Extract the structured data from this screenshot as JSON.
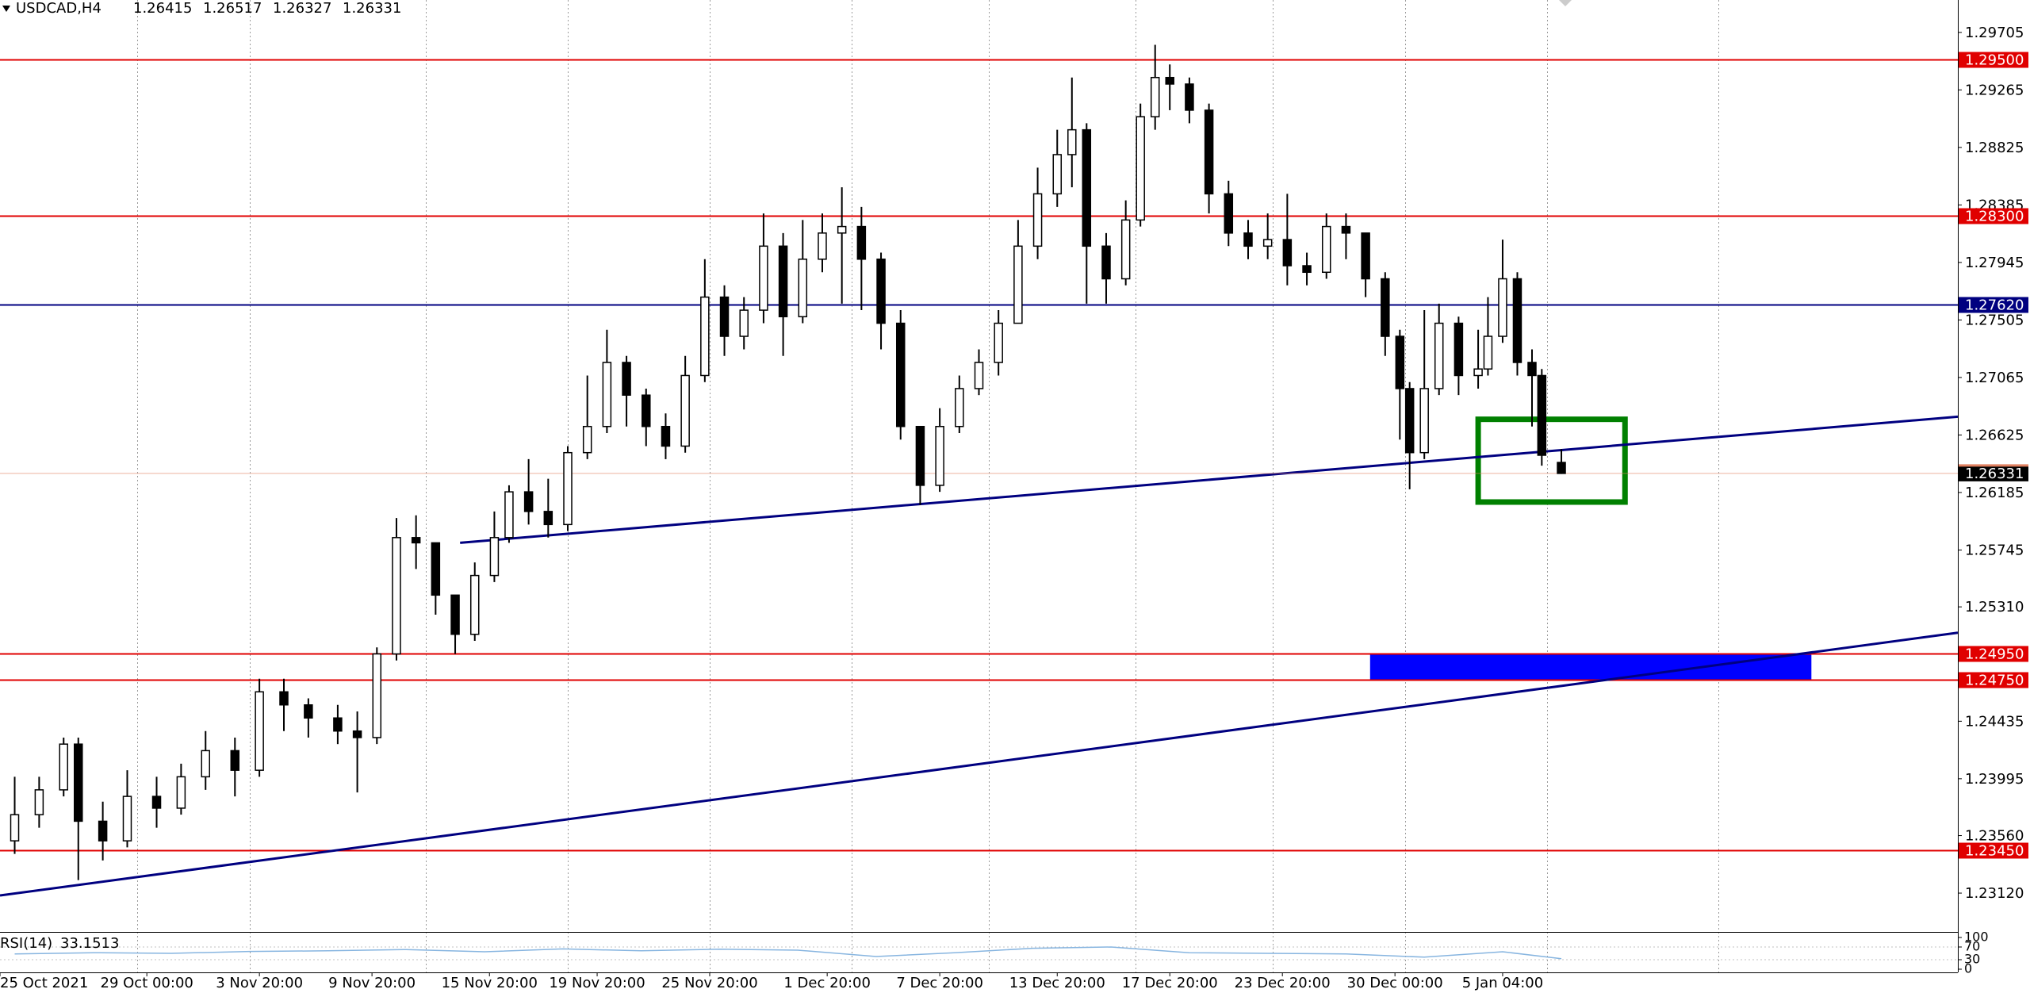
{
  "chart_data": {
    "type": "candlestick",
    "title": "USDCAD,H4",
    "x": [
      3,
      8,
      13,
      16,
      21,
      26,
      32,
      37,
      42,
      48,
      53,
      58,
      63,
      69,
      73,
      77,
      81,
      85,
      89,
      93,
      97,
      101,
      104,
      108,
      112,
      116,
      120,
      124,
      128,
      132,
      136,
      140,
      144,
      148,
      152,
      156,
      160,
      164,
      168,
      172,
      176,
      180,
      184,
      188,
      192,
      196,
      200,
      204,
      208,
      212,
      216,
      219,
      222,
      226,
      230,
      233,
      236,
      239,
      243,
      247,
      251,
      255,
      259,
      263,
      267,
      271,
      275,
      279,
      283,
      286,
      288,
      291,
      294,
      298,
      302,
      304,
      307,
      310,
      313,
      315,
      319
    ],
    "open": [
      1.2352,
      1.2372,
      1.2391,
      1.2426,
      1.2367,
      1.2352,
      1.2386,
      1.2377,
      1.2401,
      1.2421,
      1.2406,
      1.2466,
      1.2456,
      1.2446,
      1.2436,
      1.2431,
      1.2495,
      1.2584,
      1.258,
      1.254,
      1.251,
      1.2555,
      1.2584,
      1.2619,
      1.2604,
      1.2594,
      1.2649,
      1.2669,
      1.2718,
      1.2693,
      1.2669,
      1.2654,
      1.2708,
      1.2768,
      1.2738,
      1.2758,
      1.2807,
      1.2753,
      1.2797,
      1.2817,
      1.2822,
      1.2797,
      1.2748,
      1.2669,
      1.2624,
      1.2669,
      1.2698,
      1.2718,
      1.2748,
      1.2807,
      1.2847,
      1.2877,
      1.2896,
      1.2807,
      1.2782,
      1.2827,
      1.2906,
      1.2936,
      1.2931,
      1.2911,
      1.2847,
      1.2817,
      1.2807,
      1.2812,
      1.2792,
      1.2787,
      1.2822,
      1.2817,
      1.2782,
      1.2738,
      1.2698,
      1.2649,
      1.2698,
      1.2748,
      1.2708,
      1.2713,
      1.2738,
      1.2782,
      1.2718,
      1.2708,
      1.26415
    ],
    "high": [
      1.2401,
      1.2401,
      1.2431,
      1.2431,
      1.2382,
      1.2406,
      1.2401,
      1.2411,
      1.2436,
      1.2431,
      1.2476,
      1.2476,
      1.2461,
      1.2456,
      1.2451,
      1.25,
      1.2599,
      1.2601,
      1.258,
      1.254,
      1.2565,
      1.2604,
      1.2624,
      1.2644,
      1.2629,
      1.2654,
      1.2708,
      1.2743,
      1.2723,
      1.2698,
      1.2679,
      1.2723,
      1.2797,
      1.2777,
      1.2768,
      1.2832,
      1.2817,
      1.2827,
      1.2832,
      1.2852,
      1.2837,
      1.2802,
      1.2758,
      1.2669,
      1.2683,
      1.2708,
      1.2728,
      1.2758,
      1.2827,
      1.2867,
      1.2896,
      1.2936,
      1.2901,
      1.2817,
      1.2842,
      1.2916,
      1.2961,
      1.2946,
      1.2936,
      1.2916,
      1.2857,
      1.2827,
      1.2832,
      1.2847,
      1.2802,
      1.2832,
      1.2832,
      1.2817,
      1.2787,
      1.2743,
      1.2703,
      1.2758,
      1.2763,
      1.2753,
      1.2743,
      1.2768,
      1.2812,
      1.2787,
      1.2728,
      1.2713,
      1.26517
    ],
    "low": [
      1.2342,
      1.2362,
      1.2386,
      1.2322,
      1.2337,
      1.2347,
      1.2362,
      1.2372,
      1.2391,
      1.2386,
      1.2401,
      1.2436,
      1.2431,
      1.2426,
      1.2389,
      1.2426,
      1.249,
      1.256,
      1.2525,
      1.2495,
      1.2505,
      1.255,
      1.258,
      1.2594,
      1.2584,
      1.2589,
      1.2644,
      1.2664,
      1.2669,
      1.2654,
      1.2644,
      1.2649,
      1.2703,
      1.2723,
      1.2728,
      1.2748,
      1.2723,
      1.2748,
      1.2787,
      1.2763,
      1.2758,
      1.2728,
      1.2659,
      1.2609,
      1.2619,
      1.2664,
      1.2693,
      1.2708,
      1.2748,
      1.2797,
      1.2837,
      1.2852,
      1.2763,
      1.2763,
      1.2777,
      1.2822,
      1.2896,
      1.2911,
      1.2901,
      1.2832,
      1.2807,
      1.2797,
      1.2797,
      1.2777,
      1.2777,
      1.2782,
      1.2797,
      1.2768,
      1.2723,
      1.2659,
      1.2621,
      1.2644,
      1.2693,
      1.2693,
      1.2698,
      1.2708,
      1.2733,
      1.2708,
      1.2669,
      1.2639,
      1.26327
    ],
    "close": [
      1.2372,
      1.2391,
      1.2426,
      1.2367,
      1.2352,
      1.2386,
      1.2377,
      1.2401,
      1.2421,
      1.2406,
      1.2466,
      1.2456,
      1.2446,
      1.2436,
      1.2431,
      1.2495,
      1.2584,
      1.258,
      1.254,
      1.251,
      1.2555,
      1.2584,
      1.2619,
      1.2604,
      1.2594,
      1.2649,
      1.2669,
      1.2718,
      1.2693,
      1.2669,
      1.2654,
      1.2708,
      1.2768,
      1.2738,
      1.2758,
      1.2807,
      1.2753,
      1.2797,
      1.2817,
      1.2822,
      1.2797,
      1.2748,
      1.2669,
      1.2624,
      1.2669,
      1.2698,
      1.2718,
      1.2748,
      1.2807,
      1.2847,
      1.2877,
      1.2896,
      1.2807,
      1.2782,
      1.2827,
      1.2906,
      1.2936,
      1.2931,
      1.2911,
      1.2847,
      1.2817,
      1.2807,
      1.2812,
      1.2792,
      1.2787,
      1.2822,
      1.2817,
      1.2782,
      1.2738,
      1.2698,
      1.2649,
      1.2698,
      1.2748,
      1.2708,
      1.2713,
      1.2738,
      1.2782,
      1.2718,
      1.2708,
      1.2647,
      1.26331
    ],
    "up_color": "#ffffff",
    "down_color": "#000000",
    "current_color": "#e08060",
    "xlim": [
      0,
      400
    ],
    "ylim": [
      1.22823,
      1.29953
    ],
    "yticks": [
      1.29705,
      1.29265,
      1.28825,
      1.28385,
      1.27945,
      1.27505,
      1.27065,
      1.26625,
      1.26185,
      1.25745,
      {
        "value": 1.2531,
        "label": "1.25310"
      },
      1.24435,
      1.23995,
      {
        "value": 1.2356,
        "label": "1.23560"
      },
      {
        "value": 1.2312,
        "label": "1.23120"
      }
    ],
    "xticks": [
      {
        "value": 0,
        "label": "25 Oct 2021"
      },
      {
        "value": 30,
        "label": "29 Oct 00:00"
      },
      {
        "value": 53,
        "label": "3 Nov 20:00"
      },
      {
        "value": 76,
        "label": "9 Nov 20:00"
      },
      {
        "value": 100,
        "label": "15 Nov 20:00"
      },
      {
        "value": 122,
        "label": "19 Nov 20:00"
      },
      {
        "value": 145,
        "label": "25 Nov 20:00"
      },
      {
        "value": 169,
        "label": "1 Dec 20:00"
      },
      {
        "value": 192,
        "label": "7 Dec 20:00"
      },
      {
        "value": 216,
        "label": "13 Dec 20:00"
      },
      {
        "value": 239,
        "label": "17 Dec 20:00"
      },
      {
        "value": 262,
        "label": "23 Dec 20:00"
      },
      {
        "value": 285,
        "label": "30 Dec 00:00"
      },
      {
        "value": 307,
        "label": "5 Jan 04:00"
      }
    ],
    "vgrid": [
      28,
      51,
      87,
      116,
      145,
      174,
      202,
      232,
      260,
      287,
      316,
      351
    ],
    "grid": true,
    "levels": [
      {
        "value": 1.295,
        "label": "1.29500",
        "color": "#e00000"
      },
      {
        "value": 1.283,
        "label": "1.28300",
        "color": "#e00000"
      },
      {
        "value": 1.2762,
        "label": "1.27620",
        "color": "#000080"
      },
      {
        "value": 1.2495,
        "label": "1.24950",
        "color": "#e00000"
      },
      {
        "value": 1.2475,
        "label": "1.24750",
        "color": "#e00000"
      },
      {
        "value": 1.2345,
        "label": "1.23450",
        "color": "#e00000"
      }
    ],
    "trendlines": [
      {
        "x": [
          94,
          400
        ],
        "y": [
          1.258,
          1.26765
        ],
        "color": "#000080"
      },
      {
        "x": [
          0,
          400
        ],
        "y": [
          1.23102,
          1.25112
        ],
        "color": "#000080"
      }
    ],
    "zones": [
      {
        "x": [
          302,
          332
        ],
        "y": [
          1.26745,
          1.26112
        ],
        "color": "#008000",
        "fill": false
      },
      {
        "x": [
          280,
          370
        ],
        "y": [
          1.2495,
          1.2475
        ],
        "color": "#0000ff",
        "fill": true
      }
    ],
    "rsi": {
      "name": "RSI(14)",
      "x": [
        3,
        19,
        35,
        51,
        67,
        83,
        99,
        115,
        131,
        147,
        163,
        179,
        195,
        211,
        227,
        243,
        259,
        275,
        291,
        307,
        319
      ],
      "values": [
        48,
        52,
        50,
        56,
        58,
        62,
        55,
        64,
        58,
        63,
        60,
        40,
        52,
        66,
        70,
        52,
        50,
        48,
        38,
        55,
        33.1513
      ],
      "ylim": [
        0,
        100
      ],
      "yticks": [
        100,
        70,
        30,
        0
      ],
      "color": "#87b5e0"
    }
  }
}
